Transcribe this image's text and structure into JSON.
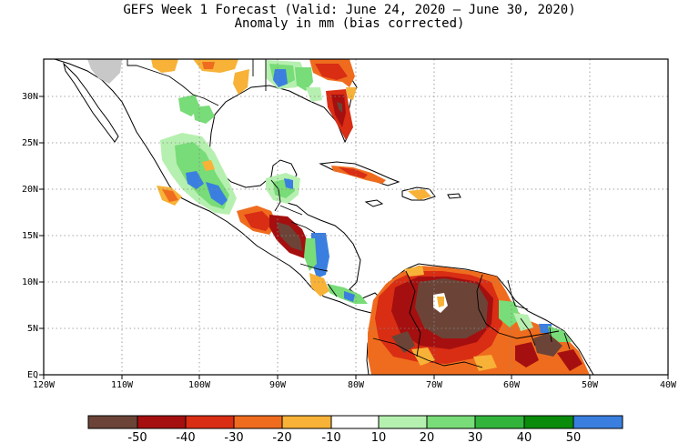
{
  "title": {
    "line1": "GEFS Week 1 Forecast (Valid: June 24, 2020 – June 30, 2020)",
    "line2": "Anomaly in mm (bias corrected)"
  },
  "map": {
    "region": "Central America, Caribbean and northern South America",
    "projection": "equirectangular",
    "lon_range": [
      -120,
      -40
    ],
    "lat_range": [
      0,
      34
    ],
    "lon_ticks": [
      "120W",
      "110W",
      "100W",
      "90W",
      "80W",
      "70W",
      "60W",
      "50W",
      "40W"
    ],
    "lat_ticks": [
      "EQ",
      "5N",
      "10N",
      "15N",
      "20N",
      "25N",
      "30N"
    ],
    "gridlines": "dotted",
    "colors": {
      "ocean": "#ffffff",
      "land": "#ffffff",
      "coast": "#000000",
      "missing": "#c8c8c8"
    }
  },
  "colorbar": {
    "labels": [
      "-50",
      "-40",
      "-30",
      "-20",
      "-10",
      "10",
      "20",
      "30",
      "40",
      "50"
    ],
    "colors": [
      "#6b4437",
      "#a50f0f",
      "#d92d14",
      "#ef6c1e",
      "#f7b237",
      "#ffffff",
      "#b6f0b0",
      "#78dc78",
      "#32b43c",
      "#0a8c0a",
      "#3a7fe0"
    ]
  }
}
